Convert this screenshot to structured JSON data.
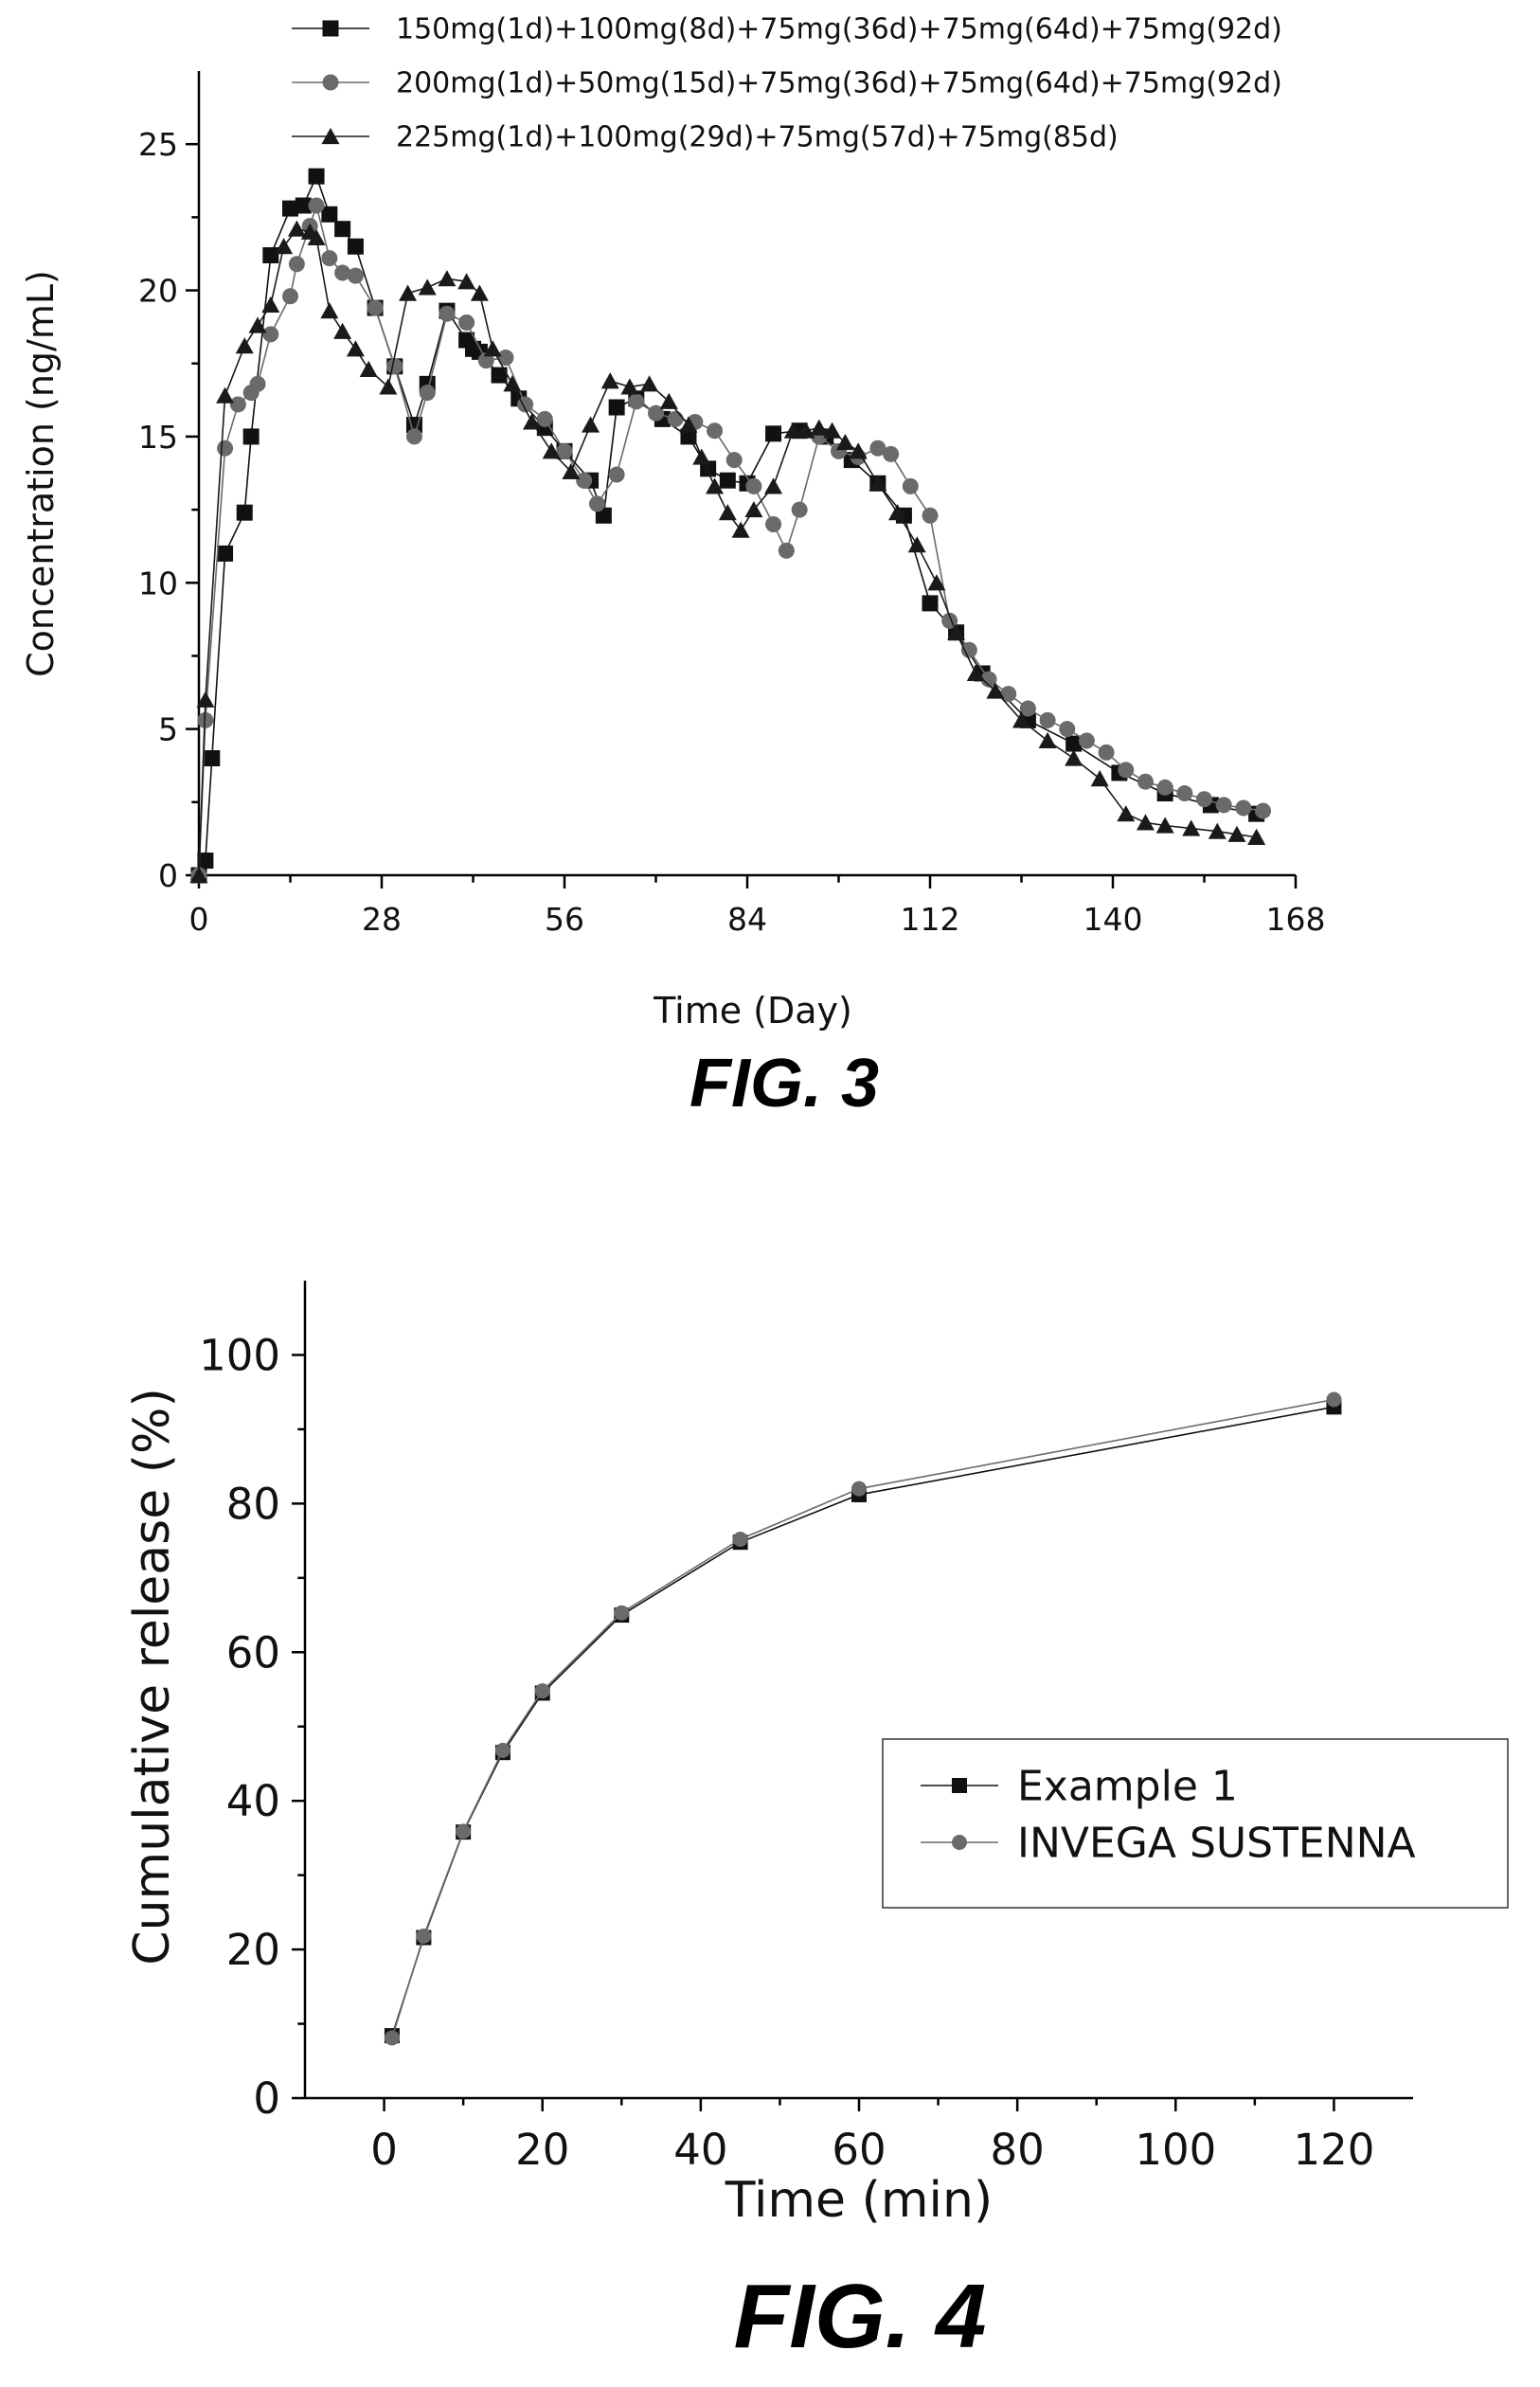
{
  "figures": {
    "fig3_caption": "FIG. 3",
    "fig4_caption": "FIG. 4"
  },
  "chart_data": [
    {
      "type": "line",
      "caption": "FIG. 3",
      "xlabel": "Time (Day)",
      "ylabel": "Concentration (ng/mL)",
      "xlim": [
        0,
        168
      ],
      "ylim": [
        0,
        27.5
      ],
      "xticks": [
        0,
        28,
        56,
        84,
        112,
        140,
        168
      ],
      "yticks": [
        0,
        5,
        10,
        15,
        20,
        25
      ],
      "grid": false,
      "legend_position": "top",
      "series": [
        {
          "name": "150mg(1d)+100mg(8d)+75mg(36d)+75mg(64d)+75mg(92d)",
          "marker": "square",
          "color": "#111111",
          "points": [
            [
              0,
              0
            ],
            [
              1,
              0.5
            ],
            [
              2,
              4
            ],
            [
              4,
              11
            ],
            [
              7,
              12.4
            ],
            [
              8,
              15
            ],
            [
              11,
              21.2
            ],
            [
              14,
              22.8
            ],
            [
              16,
              22.9
            ],
            [
              18,
              23.9
            ],
            [
              20,
              22.6
            ],
            [
              22,
              22.1
            ],
            [
              24,
              21.5
            ],
            [
              27,
              19.4
            ],
            [
              30,
              17.4
            ],
            [
              33,
              15.4
            ],
            [
              35,
              16.8
            ],
            [
              38,
              19.3
            ],
            [
              41,
              18.3
            ],
            [
              42,
              18
            ],
            [
              43,
              17.9
            ],
            [
              46,
              17.1
            ],
            [
              49,
              16.3
            ],
            [
              53,
              15.3
            ],
            [
              56,
              14.5
            ],
            [
              60,
              13.5
            ],
            [
              62,
              12.3
            ],
            [
              64,
              16
            ],
            [
              67,
              16.3
            ],
            [
              71,
              15.6
            ],
            [
              75,
              15
            ],
            [
              78,
              13.9
            ],
            [
              81,
              13.5
            ],
            [
              84,
              13.4
            ],
            [
              88,
              15.1
            ],
            [
              92,
              15.2
            ],
            [
              96,
              15
            ],
            [
              100,
              14.2
            ],
            [
              104,
              13.4
            ],
            [
              108,
              12.3
            ],
            [
              112,
              9.3
            ],
            [
              116,
              8.3
            ],
            [
              120,
              6.9
            ],
            [
              127,
              5.3
            ],
            [
              134,
              4.5
            ],
            [
              141,
              3.5
            ],
            [
              148,
              2.8
            ],
            [
              155,
              2.4
            ],
            [
              162,
              2.1
            ]
          ]
        },
        {
          "name": "200mg(1d)+50mg(15d)+75mg(36d)+75mg(64d)+75mg(92d)",
          "marker": "circle",
          "color": "#6a6a6a",
          "points": [
            [
              0,
              0
            ],
            [
              1,
              5.3
            ],
            [
              4,
              14.6
            ],
            [
              6,
              16.1
            ],
            [
              8,
              16.5
            ],
            [
              9,
              16.8
            ],
            [
              11,
              18.5
            ],
            [
              14,
              19.8
            ],
            [
              15,
              20.9
            ],
            [
              17,
              22.2
            ],
            [
              18,
              22.9
            ],
            [
              20,
              21.1
            ],
            [
              22,
              20.6
            ],
            [
              24,
              20.5
            ],
            [
              27,
              19.4
            ],
            [
              30,
              17.4
            ],
            [
              33,
              15
            ],
            [
              35,
              16.5
            ],
            [
              38,
              19.2
            ],
            [
              41,
              18.9
            ],
            [
              44,
              17.6
            ],
            [
              47,
              17.7
            ],
            [
              50,
              16.1
            ],
            [
              53,
              15.6
            ],
            [
              56,
              14.5
            ],
            [
              59,
              13.5
            ],
            [
              61,
              12.7
            ],
            [
              64,
              13.7
            ],
            [
              67,
              16.2
            ],
            [
              70,
              15.8
            ],
            [
              73,
              15.6
            ],
            [
              76,
              15.5
            ],
            [
              79,
              15.2
            ],
            [
              82,
              14.2
            ],
            [
              85,
              13.3
            ],
            [
              88,
              12
            ],
            [
              90,
              11.1
            ],
            [
              92,
              12.5
            ],
            [
              95,
              15
            ],
            [
              98,
              14.5
            ],
            [
              101,
              14.3
            ],
            [
              104,
              14.6
            ],
            [
              106,
              14.4
            ],
            [
              109,
              13.3
            ],
            [
              112,
              12.3
            ],
            [
              115,
              8.7
            ],
            [
              118,
              7.7
            ],
            [
              121,
              6.7
            ],
            [
              124,
              6.2
            ],
            [
              127,
              5.7
            ],
            [
              130,
              5.3
            ],
            [
              133,
              5
            ],
            [
              136,
              4.6
            ],
            [
              139,
              4.2
            ],
            [
              142,
              3.6
            ],
            [
              145,
              3.2
            ],
            [
              148,
              3
            ],
            [
              151,
              2.8
            ],
            [
              154,
              2.6
            ],
            [
              157,
              2.4
            ],
            [
              160,
              2.3
            ],
            [
              163,
              2.2
            ]
          ]
        },
        {
          "name": "225mg(1d)+100mg(29d)+75mg(57d)+75mg(85d)",
          "marker": "triangle",
          "color": "#1a1a1a",
          "points": [
            [
              0,
              0
            ],
            [
              1,
              6
            ],
            [
              4,
              16.4
            ],
            [
              7,
              18.1
            ],
            [
              9,
              18.8
            ],
            [
              11,
              19.5
            ],
            [
              13,
              21.5
            ],
            [
              15,
              22.1
            ],
            [
              17,
              22
            ],
            [
              18,
              21.8
            ],
            [
              20,
              19.3
            ],
            [
              22,
              18.6
            ],
            [
              24,
              18
            ],
            [
              26,
              17.3
            ],
            [
              29,
              16.7
            ],
            [
              32,
              19.9
            ],
            [
              35,
              20.1
            ],
            [
              38,
              20.4
            ],
            [
              41,
              20.3
            ],
            [
              43,
              19.9
            ],
            [
              45,
              18
            ],
            [
              48,
              16.8
            ],
            [
              51,
              15.5
            ],
            [
              54,
              14.5
            ],
            [
              57,
              13.8
            ],
            [
              60,
              15.4
            ],
            [
              63,
              16.9
            ],
            [
              66,
              16.7
            ],
            [
              69,
              16.8
            ],
            [
              72,
              16.2
            ],
            [
              75,
              15.4
            ],
            [
              77,
              14.3
            ],
            [
              79,
              13.3
            ],
            [
              81,
              12.4
            ],
            [
              83,
              11.8
            ],
            [
              85,
              12.5
            ],
            [
              88,
              13.3
            ],
            [
              91,
              15.2
            ],
            [
              93,
              15.2
            ],
            [
              95,
              15.3
            ],
            [
              97,
              15.2
            ],
            [
              99,
              14.8
            ],
            [
              101,
              14.5
            ],
            [
              104,
              13.4
            ],
            [
              107,
              12.4
            ],
            [
              110,
              11.3
            ],
            [
              113,
              10
            ],
            [
              116,
              8.3
            ],
            [
              119,
              6.9
            ],
            [
              122,
              6.3
            ],
            [
              126,
              5.3
            ],
            [
              130,
              4.6
            ],
            [
              134,
              4
            ],
            [
              138,
              3.3
            ],
            [
              142,
              2.1
            ],
            [
              145,
              1.8
            ],
            [
              148,
              1.7
            ],
            [
              152,
              1.6
            ],
            [
              156,
              1.5
            ],
            [
              159,
              1.4
            ],
            [
              162,
              1.3
            ]
          ]
        }
      ]
    },
    {
      "type": "line",
      "caption": "FIG. 4",
      "xlabel": "Time (min)",
      "ylabel": "Cumulative release (%)",
      "xlim": [
        -10,
        130
      ],
      "ylim": [
        0,
        110
      ],
      "xticks": [
        0,
        20,
        40,
        60,
        80,
        100,
        120
      ],
      "yticks": [
        0,
        20,
        40,
        60,
        80,
        100
      ],
      "grid": false,
      "legend_position": "center-right",
      "series": [
        {
          "name": "Example 1",
          "marker": "square",
          "color": "#111111",
          "points": [
            [
              1,
              8.4
            ],
            [
              5,
              21.6
            ],
            [
              10,
              35.8
            ],
            [
              15,
              46.5
            ],
            [
              20,
              54.5
            ],
            [
              30,
              65
            ],
            [
              45,
              74.8
            ],
            [
              60,
              81.2
            ],
            [
              120,
              93
            ]
          ]
        },
        {
          "name": "INVEGA SUSTENNA",
          "marker": "circle",
          "color": "#6a6a6a",
          "points": [
            [
              1,
              8.1
            ],
            [
              5,
              21.8
            ],
            [
              10,
              35.9
            ],
            [
              15,
              46.8
            ],
            [
              20,
              54.8
            ],
            [
              30,
              65.3
            ],
            [
              45,
              75.2
            ],
            [
              60,
              82
            ],
            [
              120,
              94
            ]
          ]
        }
      ]
    }
  ]
}
